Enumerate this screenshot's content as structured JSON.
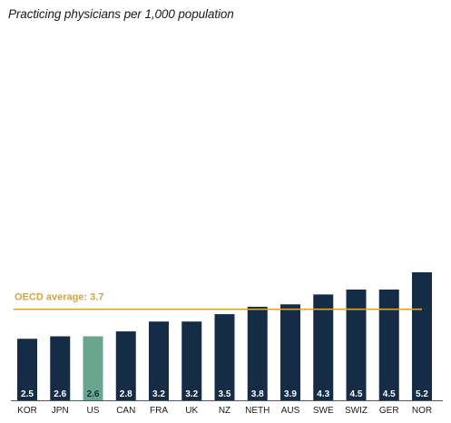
{
  "chart_data": {
    "type": "bar",
    "title": "Practicing physicians per 1,000 population",
    "categories": [
      "KOR",
      "JPN",
      "US",
      "CAN",
      "FRA",
      "UK",
      "NZ",
      "NETH",
      "AUS",
      "SWE",
      "SWIZ",
      "GER",
      "NOR"
    ],
    "values": [
      2.5,
      2.6,
      2.6,
      2.8,
      3.2,
      3.2,
      3.5,
      3.8,
      3.9,
      4.3,
      4.5,
      4.5,
      5.2
    ],
    "value_labels": [
      "2.5",
      "2.6",
      "2.6",
      "2.8",
      "3.2",
      "3.2",
      "3.5",
      "3.8",
      "3.9",
      "4.3",
      "4.5",
      "4.5",
      "5.2"
    ],
    "highlight_category": "US",
    "reference_line": {
      "label": "OECD average: 3.7",
      "value": 3.7,
      "color": "#d4a63a"
    },
    "xlabel": "",
    "ylabel": "",
    "ylim": [
      0,
      5.2
    ],
    "grid": false,
    "legend": "none",
    "colors": {
      "bar": "#152c47",
      "highlight_bar": "#6aa68e",
      "bar_label": "#ffffff",
      "highlight_bar_label": "#152c47",
      "axis": "#555555"
    }
  }
}
